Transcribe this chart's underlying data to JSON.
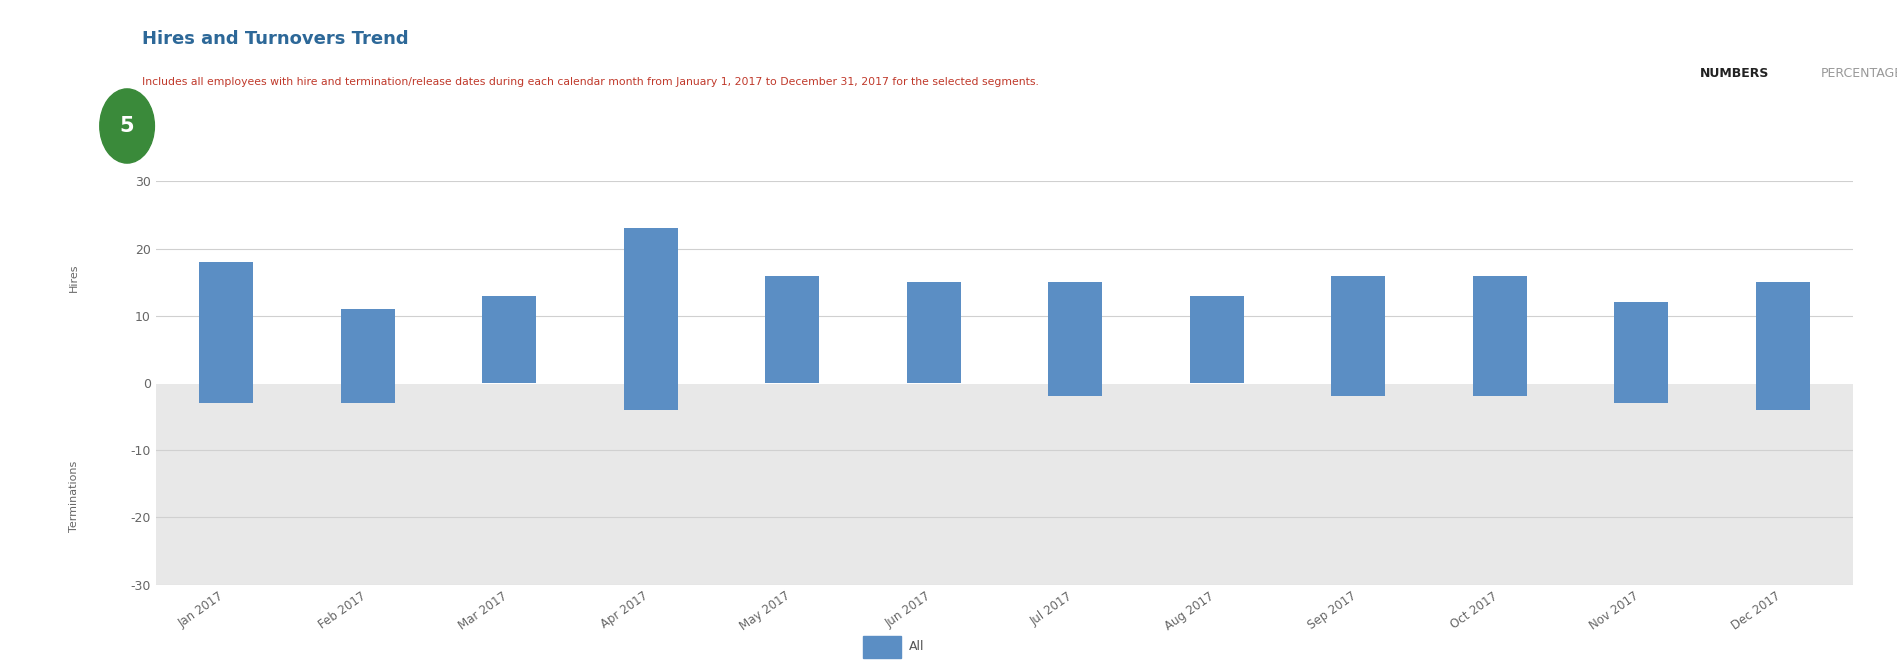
{
  "title": "Hires and Turnovers Trend",
  "subtitle": "Includes all employees with hire and termination/release dates during each calendar month from January 1, 2017 to December 31, 2017 for the selected segments.",
  "title_color": "#2d6898",
  "subtitle_color": "#c0392b",
  "tab_numbers": "NUMBERS",
  "tab_percentage": "PERCENTAGE",
  "callout_number": "5",
  "callout_color": "#3a8a3a",
  "categories": [
    "Jan 2017",
    "Feb 2017",
    "Mar 2017",
    "Apr 2017",
    "May 2017",
    "Jun 2017",
    "Jul 2017",
    "Aug 2017",
    "Sep 2017",
    "Oct 2017",
    "Nov 2017",
    "Dec 2017"
  ],
  "hires": [
    18,
    11,
    13,
    23,
    16,
    15,
    15,
    13,
    16,
    16,
    12,
    15
  ],
  "terminations": [
    -3,
    -3,
    0,
    -4,
    0,
    0,
    -2,
    0,
    -2,
    -2,
    -3,
    -4
  ],
  "bar_color": "#5b8ec4",
  "upper_region_color": "#ffffff",
  "lower_region_color": "#e8e8e8",
  "ylim": [
    -30,
    30
  ],
  "yticks": [
    -30,
    -20,
    -10,
    0,
    10,
    20,
    30
  ],
  "hires_label": "Hires",
  "terminations_label": "Terminations",
  "legend_label": "All",
  "legend_color": "#5b8ec4",
  "grid_color": "#d0d0d0",
  "numbers_underline_color": "#2d6898",
  "tab_numbers_color": "#222222",
  "tab_percentage_color": "#999999"
}
